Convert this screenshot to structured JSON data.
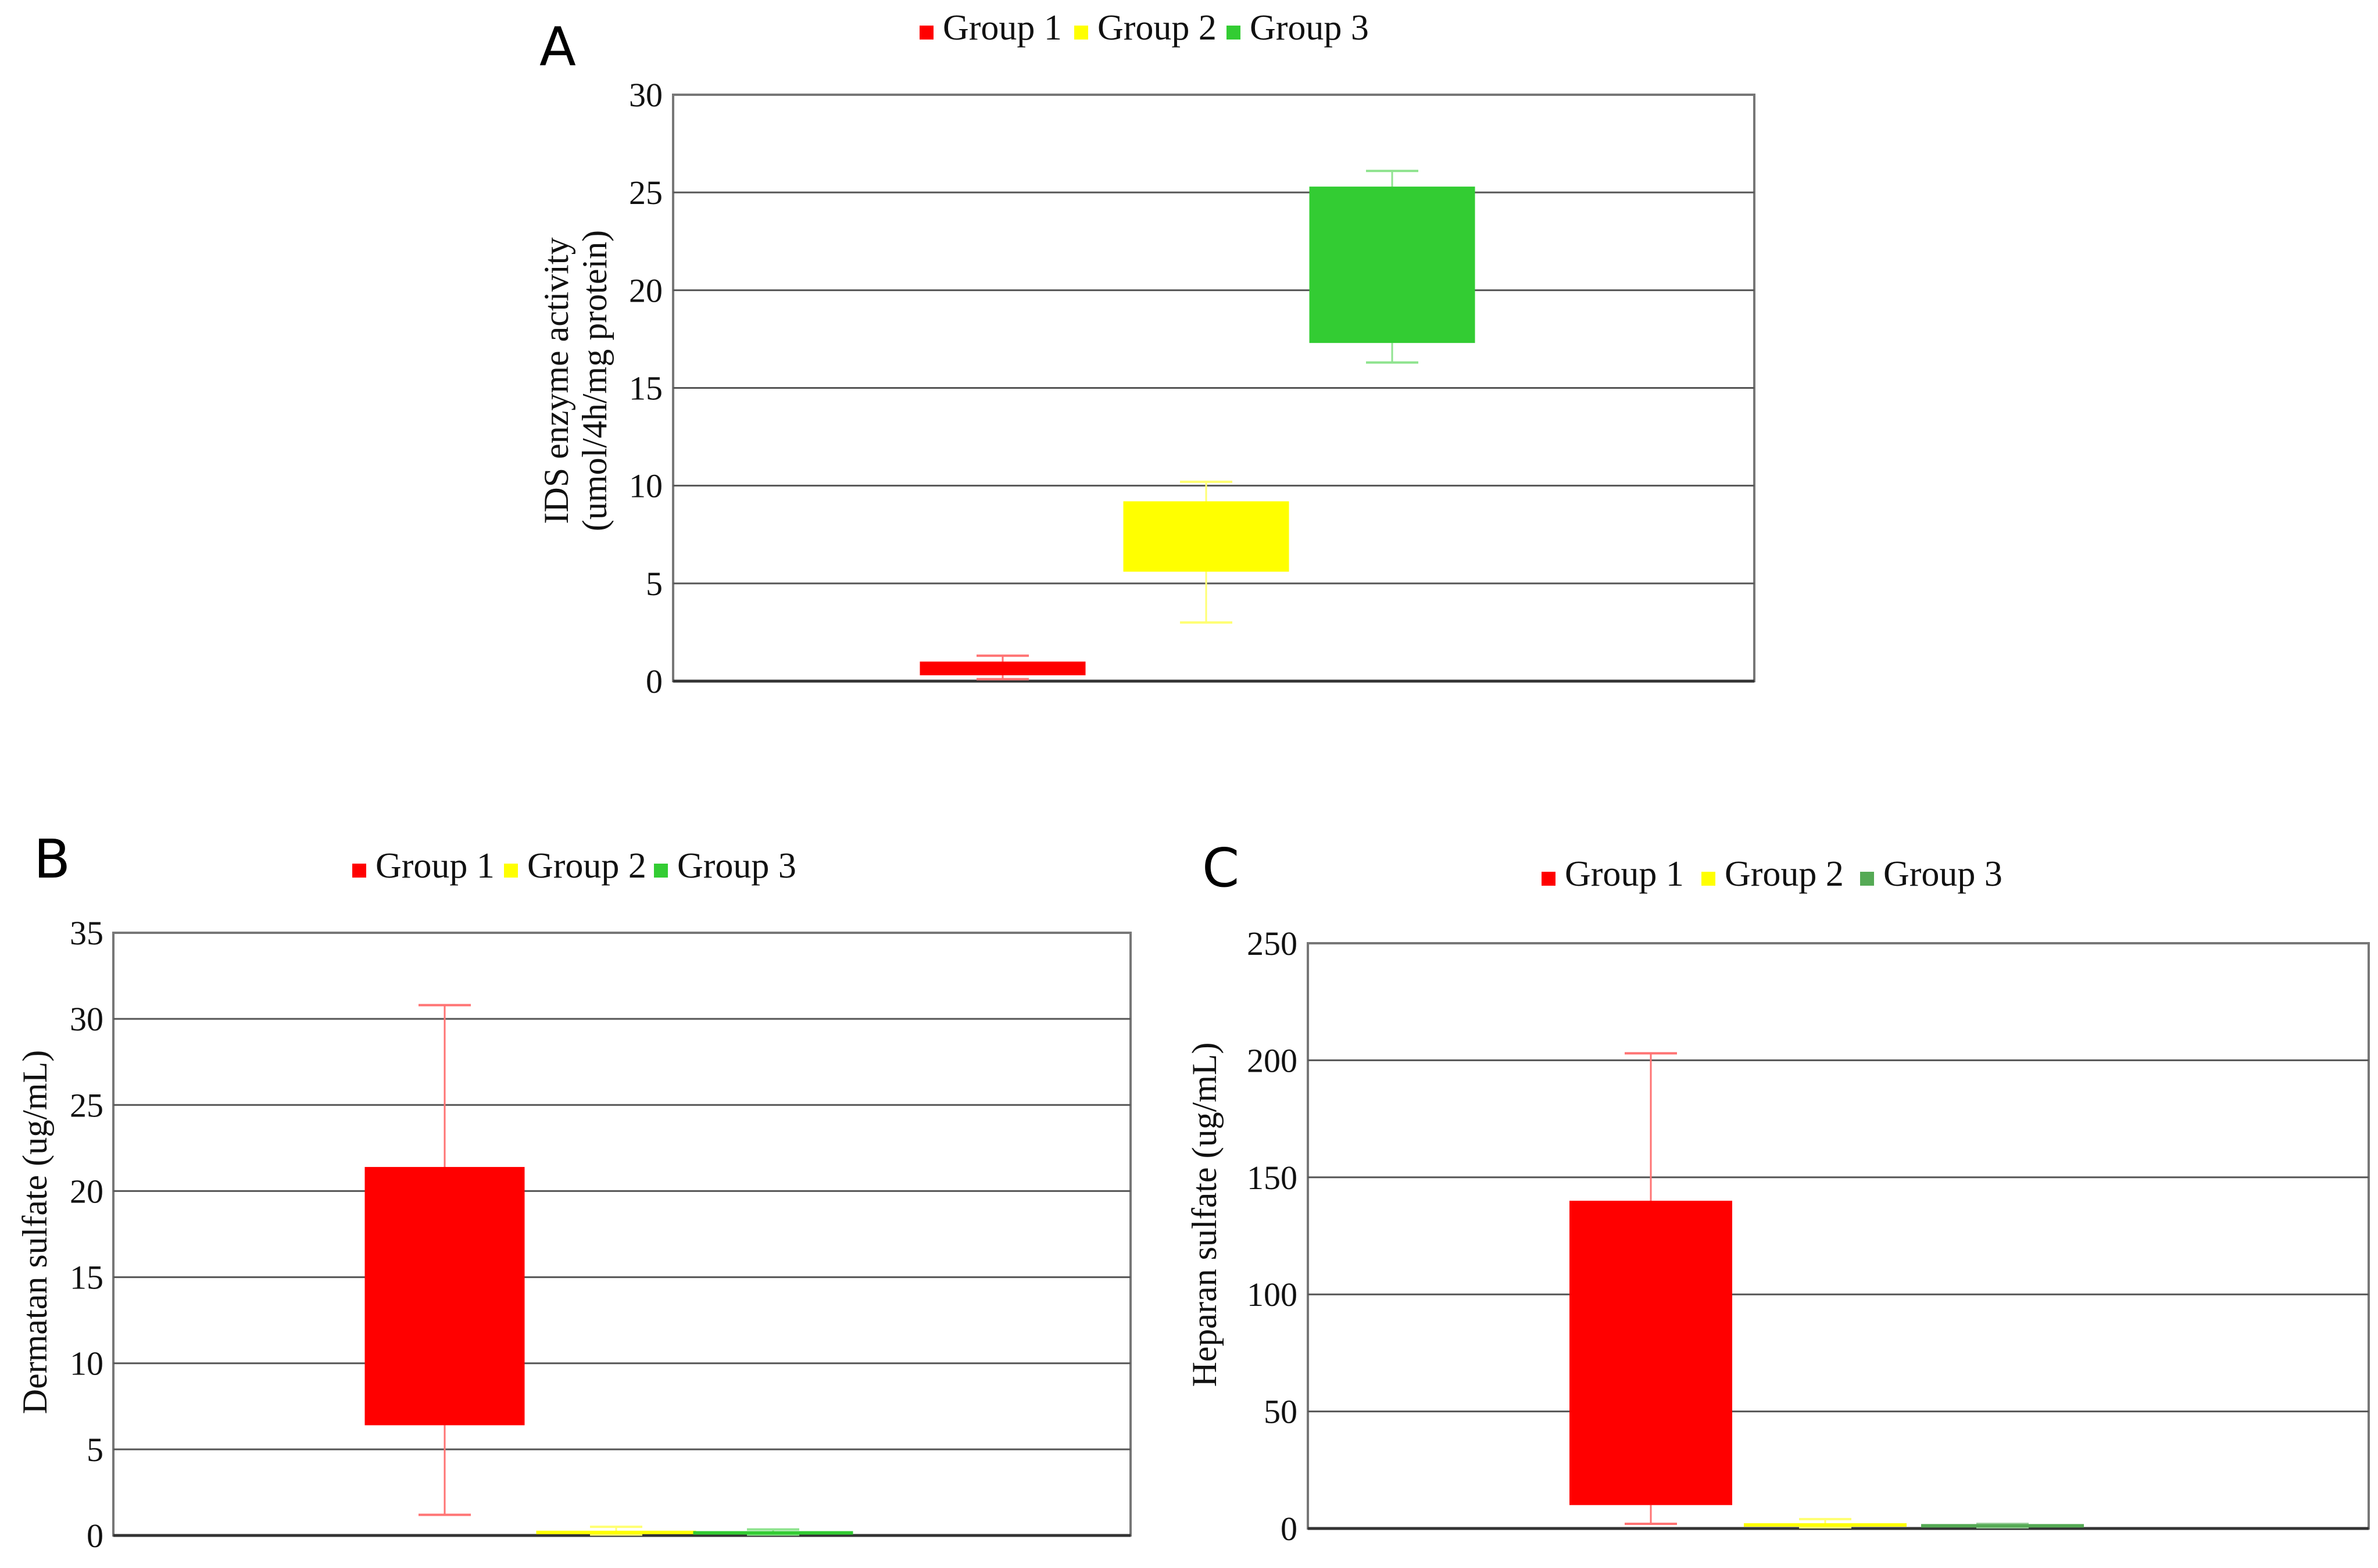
{
  "chart_data": [
    {
      "type": "box",
      "panel": "A",
      "legend": [
        "Group 1",
        "Group 2",
        "Group 3"
      ],
      "colors": [
        "#ff0000",
        "#ffff00",
        "#33cc33"
      ],
      "ylabel_line1": "IDS enzyme activity",
      "ylabel_line2": "(umol/4h/mg protein)",
      "ylim": [
        0,
        30
      ],
      "yticks": [
        0,
        5,
        10,
        15,
        20,
        25,
        30
      ],
      "series": [
        {
          "name": "Group 1",
          "min": 0.1,
          "q1": 0.3,
          "q3": 1.0,
          "max": 1.3
        },
        {
          "name": "Group 2",
          "min": 3.0,
          "q1": 5.6,
          "q3": 9.2,
          "max": 10.2
        },
        {
          "name": "Group 3",
          "min": 16.3,
          "q1": 17.3,
          "q3": 25.3,
          "max": 26.1
        }
      ]
    },
    {
      "type": "box",
      "panel": "B",
      "legend": [
        "Group 1",
        "Group 2",
        "Group 3"
      ],
      "colors": [
        "#ff0000",
        "#ffff00",
        "#33cc33"
      ],
      "ylabel": "Dermatan sulfate (ug/mL)",
      "ylim": [
        0,
        35
      ],
      "yticks": [
        0,
        5,
        10,
        15,
        20,
        25,
        30,
        35
      ],
      "series": [
        {
          "name": "Group 1",
          "min": 1.2,
          "q1": 6.4,
          "q3": 21.4,
          "max": 30.8
        },
        {
          "name": "Group 2",
          "min": 0.05,
          "q1": 0.1,
          "q3": 0.25,
          "max": 0.5
        },
        {
          "name": "Group 3",
          "min": 0.05,
          "q1": 0.1,
          "q3": 0.2,
          "max": 0.35
        }
      ]
    },
    {
      "type": "box",
      "panel": "C",
      "legend": [
        "Group 1",
        "Group 2",
        "Group 3"
      ],
      "colors": [
        "#ff0000",
        "#ffff00",
        "#55aa55"
      ],
      "ylabel": "Heparan sulfate (ug/mL)",
      "ylim": [
        0,
        250
      ],
      "yticks": [
        0,
        50,
        100,
        150,
        200,
        250
      ],
      "series": [
        {
          "name": "Group 1",
          "min": 2,
          "q1": 10,
          "q3": 140,
          "max": 203
        },
        {
          "name": "Group 2",
          "min": 0.5,
          "q1": 1,
          "q3": 2,
          "max": 4
        },
        {
          "name": "Group 3",
          "min": 0.5,
          "q1": 0.8,
          "q3": 1.5,
          "max": 2
        }
      ]
    }
  ]
}
